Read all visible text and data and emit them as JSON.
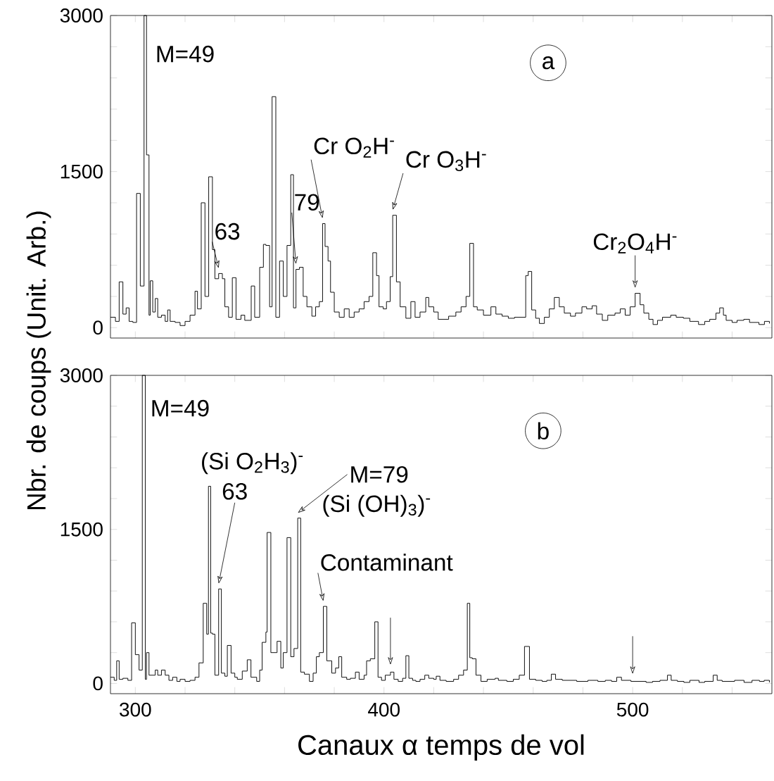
{
  "chart_data": [
    {
      "type": "step",
      "color": "#000000",
      "ylabel": "Nbr. de coups (Unit. Arb.)",
      "xlim": [
        290,
        556
      ],
      "ylim": [
        -100,
        3000
      ],
      "tick_labels": "y",
      "xticks": [
        300,
        {
          "value": 320,
          "label": null
        },
        {
          "value": 340,
          "label": null
        },
        {
          "value": 360,
          "label": null
        },
        {
          "value": 380,
          "label": null
        },
        400,
        {
          "value": 420,
          "label": null
        },
        {
          "value": 440,
          "label": null
        },
        {
          "value": 460,
          "label": null
        },
        {
          "value": 480,
          "label": null
        },
        500,
        {
          "value": 520,
          "label": null
        },
        {
          "value": 540,
          "label": null
        }
      ],
      "yticks": [
        0,
        {
          "value": 300,
          "label": null
        },
        {
          "value": 600,
          "label": null
        },
        {
          "value": 900,
          "label": null
        },
        {
          "value": 1200,
          "label": null
        },
        1500,
        {
          "value": 1800,
          "label": null
        },
        {
          "value": 2100,
          "label": null
        },
        {
          "value": 2400,
          "label": null
        },
        {
          "value": 2700,
          "label": null
        },
        3000
      ],
      "x": [
        290,
        292,
        293.5,
        295,
        296.3,
        297.5,
        299,
        300.5,
        302,
        303.5,
        304.5,
        305.5,
        306,
        307,
        308,
        309,
        310.5,
        312,
        313,
        314,
        316,
        318,
        320,
        322,
        324,
        325,
        326.5,
        328,
        329.5,
        331,
        332,
        333.5,
        335,
        336,
        337.5,
        339,
        340.5,
        342.5,
        344,
        346.6,
        348,
        350,
        351.5,
        352.5,
        354,
        355,
        356.5,
        358,
        359.5,
        361,
        362.5,
        363.6,
        364.6,
        366,
        367.5,
        369,
        371,
        372.5,
        374,
        375.3,
        376.3,
        377.5,
        378.5,
        380,
        382,
        384,
        386,
        388,
        390,
        392,
        394,
        395.5,
        397,
        398,
        399.7,
        401,
        402.5,
        403.5,
        405,
        406.5,
        408.8,
        410.8,
        412.5,
        414.5,
        416.8,
        418,
        420,
        421.8,
        423.8,
        426,
        428.9,
        431,
        433,
        434.5,
        436,
        437.5,
        440,
        443,
        445,
        447.5,
        450,
        452.5,
        455,
        457,
        458,
        459.4,
        461,
        462.5,
        464.5,
        466.5,
        468.5,
        470.5,
        472.5,
        475,
        477,
        479.6,
        481.5,
        483.7,
        485.5,
        487.8,
        490,
        492.9,
        495,
        497,
        499,
        501,
        503,
        504.5,
        506.5,
        508.2,
        510,
        512,
        515.3,
        517.5,
        520.4,
        523,
        526.5,
        529,
        531,
        533.5,
        535,
        536.5,
        537.6,
        540,
        542,
        544.7,
        547,
        550.8,
        553,
        555
      ],
      "values": [
        100,
        60,
        440,
        130,
        190,
        60,
        50,
        1290,
        400,
        3000,
        1660,
        120,
        450,
        150,
        280,
        100,
        120,
        60,
        170,
        60,
        50,
        20,
        60,
        120,
        350,
        180,
        1200,
        300,
        1450,
        750,
        470,
        520,
        470,
        200,
        100,
        480,
        80,
        120,
        70,
        400,
        100,
        580,
        800,
        790,
        200,
        2220,
        100,
        640,
        300,
        790,
        1470,
        190,
        560,
        580,
        300,
        200,
        110,
        200,
        250,
        1000,
        780,
        640,
        340,
        150,
        100,
        180,
        100,
        150,
        180,
        250,
        300,
        720,
        500,
        200,
        180,
        250,
        490,
        1080,
        440,
        200,
        90,
        250,
        100,
        150,
        290,
        200,
        150,
        80,
        80,
        110,
        150,
        200,
        300,
        810,
        200,
        170,
        120,
        200,
        130,
        110,
        90,
        100,
        100,
        500,
        540,
        170,
        90,
        40,
        100,
        180,
        290,
        200,
        140,
        110,
        140,
        200,
        180,
        210,
        130,
        70,
        120,
        140,
        180,
        120,
        200,
        330,
        220,
        140,
        80,
        30,
        70,
        100,
        120,
        100,
        90,
        60,
        30,
        60,
        80,
        140,
        190,
        120,
        70,
        50,
        70,
        80,
        50,
        30,
        60,
        40
      ],
      "annotations": [
        "M=49",
        "a",
        {
          "text": "Cr O$_{2}$H$^{-}$",
          "x": 375.3,
          "y": 1000
        },
        {
          "text": "Cr O$_{3}$H$^{-}$",
          "x": 403.5,
          "y": 1080
        },
        {
          "text": "Cr$_{2}$O$_{4}$H$^{-}$",
          "x": 501,
          "y": 330
        },
        {
          "text": "63",
          "x": 333.5,
          "y": 520
        },
        {
          "text": "79",
          "x": 364.6,
          "y": 560
        }
      ]
    },
    {
      "type": "step",
      "color": "#000000",
      "xlabel": "Canaux α temps de vol",
      "xlim": [
        290,
        556
      ],
      "ylim": [
        -100,
        3000
      ],
      "xticks": [
        300,
        {
          "value": 320,
          "label": null
        },
        {
          "value": 340,
          "label": null
        },
        {
          "value": 360,
          "label": null
        },
        {
          "value": 380,
          "label": null
        },
        400,
        {
          "value": 420,
          "label": null
        },
        {
          "value": 440,
          "label": null
        },
        {
          "value": 460,
          "label": null
        },
        {
          "value": 480,
          "label": null
        },
        500,
        {
          "value": 520,
          "label": null
        },
        {
          "value": 540,
          "label": null
        }
      ],
      "yticks": [
        0,
        {
          "value": 300,
          "label": null
        },
        {
          "value": 600,
          "label": null
        },
        {
          "value": 900,
          "label": null
        },
        {
          "value": 1200,
          "label": null
        },
        1500,
        {
          "value": 1800,
          "label": null
        },
        {
          "value": 2100,
          "label": null
        },
        {
          "value": 2400,
          "label": null
        },
        {
          "value": 2700,
          "label": null
        },
        3000
      ],
      "x": [
        290,
        291.5,
        292.5,
        293.5,
        295,
        297,
        298.5,
        300,
        301.5,
        302.8,
        304,
        304.5,
        305.5,
        307,
        308,
        309,
        310.5,
        312,
        313.5,
        315,
        316.7,
        318,
        320,
        322,
        324,
        325.6,
        327.3,
        328.7,
        329.4,
        330.3,
        331,
        332,
        333.5,
        334.6,
        336,
        337,
        338.5,
        340,
        341,
        343,
        345,
        346.5,
        348.8,
        350,
        351,
        352.5,
        353,
        354.5,
        357,
        358.5,
        359.5,
        361,
        362.5,
        363.8,
        365.3,
        366.5,
        368,
        370,
        371.5,
        372.8,
        374,
        375.6,
        377,
        379,
        380.5,
        381.8,
        383,
        385,
        386.5,
        388.5,
        390,
        392,
        393,
        394.5,
        396.3,
        397.6,
        399,
        400.5,
        402.6,
        404,
        405.7,
        407.5,
        408.8,
        410,
        411.5,
        412.8,
        414.5,
        416.4,
        418,
        420,
        421,
        422.5,
        425,
        428,
        430,
        432,
        433.5,
        434.5,
        435.5,
        437,
        439,
        441.5,
        444.7,
        446,
        449.4,
        452,
        454.4,
        456.5,
        458.5,
        461,
        463.6,
        465.5,
        467.3,
        469,
        471.7,
        475,
        477.5,
        479.9,
        482,
        486,
        489,
        491.5,
        493.6,
        495.5,
        499.3,
        502,
        505.4,
        508,
        511,
        514,
        515.5,
        518,
        520.6,
        523,
        526.7,
        529,
        532.4,
        534,
        536,
        538.7,
        541,
        544.8,
        548,
        551,
        552.9,
        555
      ],
      "values": [
        60,
        30,
        220,
        40,
        50,
        30,
        590,
        280,
        130,
        3000,
        40,
        300,
        80,
        80,
        130,
        80,
        130,
        80,
        30,
        60,
        20,
        40,
        20,
        30,
        60,
        200,
        780,
        480,
        1920,
        490,
        480,
        80,
        920,
        100,
        70,
        370,
        100,
        60,
        40,
        120,
        230,
        60,
        20,
        130,
        400,
        500,
        1470,
        300,
        410,
        150,
        300,
        1420,
        260,
        340,
        1610,
        110,
        90,
        20,
        100,
        260,
        300,
        750,
        220,
        100,
        150,
        260,
        60,
        40,
        50,
        110,
        40,
        80,
        220,
        240,
        600,
        60,
        30,
        80,
        110,
        40,
        20,
        50,
        270,
        50,
        30,
        20,
        40,
        80,
        50,
        40,
        70,
        30,
        20,
        40,
        80,
        130,
        780,
        250,
        240,
        80,
        20,
        40,
        50,
        30,
        20,
        40,
        80,
        360,
        40,
        30,
        20,
        30,
        90,
        40,
        30,
        30,
        20,
        20,
        30,
        20,
        30,
        20,
        60,
        30,
        20,
        20,
        10,
        20,
        30,
        80,
        30,
        20,
        10,
        30,
        10,
        20,
        80,
        30,
        20,
        20,
        30,
        10,
        30,
        20,
        30,
        10
      ],
      "annotations": [
        "M=49",
        "b",
        "(Si O$_{2}$H$_{3}$)$^{-}$",
        "63",
        {
          "text": "M=79",
          "x": 365.3,
          "y": 1610
        },
        "(Si (OH)$_{3}$)$^{-}$",
        {
          "text": "Contaminant",
          "x": 375.6,
          "y": 750
        }
      ]
    }
  ]
}
